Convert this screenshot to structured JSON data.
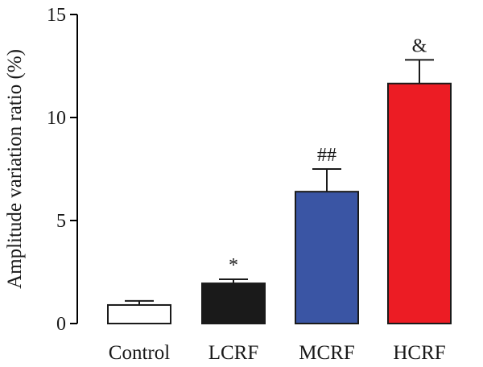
{
  "chart_data": {
    "type": "bar",
    "ylabel": "Amplitude variation ratio (%)",
    "xlabel": "",
    "ylim": [
      0,
      15
    ],
    "yticks": [
      0,
      5,
      10,
      15
    ],
    "categories": [
      "Control",
      "LCRF",
      "MCRF",
      "HCRF"
    ],
    "values": [
      0.9,
      1.95,
      6.4,
      11.65
    ],
    "errors": [
      0.2,
      0.2,
      1.1,
      1.15
    ],
    "annotations": [
      "",
      "*",
      "##",
      "&"
    ],
    "colors": [
      "#ffffff",
      "#1a1a1a",
      "#3a55a4",
      "#ec1c24"
    ],
    "grid": false
  }
}
